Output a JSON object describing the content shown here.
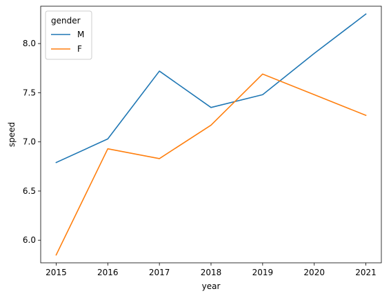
{
  "chart_data": {
    "type": "line",
    "x": [
      2015,
      2016,
      2017,
      2018,
      2019,
      2020,
      2021
    ],
    "series": [
      {
        "name": "M",
        "color": "#1f77b4",
        "values": [
          6.79,
          7.03,
          7.72,
          7.35,
          7.48,
          7.9,
          8.3
        ]
      },
      {
        "name": "F",
        "color": "#ff7f0e",
        "values": [
          5.85,
          6.93,
          6.83,
          7.17,
          7.69,
          7.48,
          7.27
        ]
      }
    ],
    "title": "",
    "xlabel": "year",
    "ylabel": "speed",
    "xlim": [
      2014.7,
      2021.3
    ],
    "ylim": [
      5.77,
      8.38
    ],
    "xticks": [
      2015,
      2016,
      2017,
      2018,
      2019,
      2020,
      2021
    ],
    "yticks": [
      "6.0",
      "6.5",
      "7.0",
      "7.5",
      "8.0"
    ],
    "legend": {
      "title": "gender",
      "placement": "top-left"
    },
    "grid": false
  }
}
